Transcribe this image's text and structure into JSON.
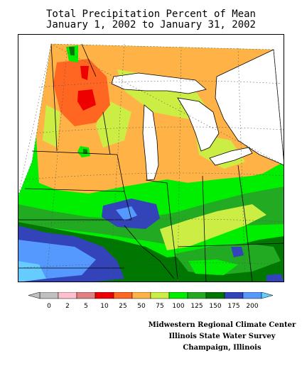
{
  "title": {
    "line1": "Total Precipitation Percent of Mean",
    "line2": "January 1, 2002 to January 31, 2002"
  },
  "legend": {
    "bins": [
      {
        "label": "0",
        "color": "#c0c0c0"
      },
      {
        "label": "2",
        "color": "#ffbfcf"
      },
      {
        "label": "5",
        "color": "#e08080"
      },
      {
        "label": "10",
        "color": "#ee0000"
      },
      {
        "label": "25",
        "color": "#ff6622"
      },
      {
        "label": "50",
        "color": "#ffb347"
      },
      {
        "label": "75",
        "color": "#ccee44"
      },
      {
        "label": "100",
        "color": "#00ee00"
      },
      {
        "label": "125",
        "color": "#22aa22"
      },
      {
        "label": "150",
        "color": "#007700"
      },
      {
        "label": "175",
        "color": "#3344bb"
      },
      {
        "label": "200",
        "color": "#5599ff"
      }
    ],
    "overflow_color": "#66ccff"
  },
  "credits": {
    "line1": "Midwestern Regional Climate Center",
    "line2": "Illinois State Water Survey",
    "line3": "Champaign, Illinois"
  },
  "colors": {
    "lake": "#ffffff",
    "border": "#000000",
    "grid": "#555555"
  }
}
